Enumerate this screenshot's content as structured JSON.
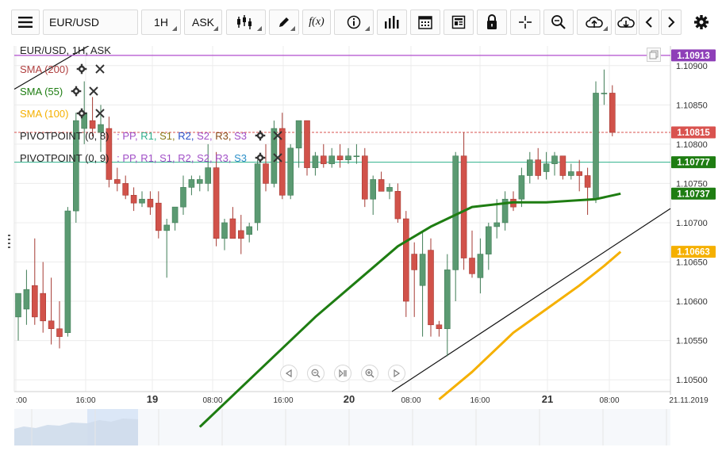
{
  "toolbar": {
    "symbol": "EUR/USD",
    "timeframe": "1H",
    "price_side": "ASK",
    "fx_label": "f(x)"
  },
  "legend": {
    "title": "EUR/USD, 1H, ASK",
    "sma200": "SMA (200)",
    "sma55": "SMA (55)",
    "sma100": "SMA (100)",
    "pivot1_prefix": "PIVOTPOINT (0, 8)",
    "pivot2_prefix": "PIVOTPOINT (0, 9)",
    "pivot_colon": ":",
    "pp": "PP,",
    "r1": "R1,",
    "s1": "S1,",
    "r2": "R2,",
    "s2": "S2,",
    "r3": "R3,",
    "s3": "S3"
  },
  "colors": {
    "bull": "#5b9a72",
    "bear": "#d1524a",
    "sma200": "#b04040",
    "sma55": "#1e7d12",
    "sma100": "#f5b000",
    "purple_line": "#b24fcf",
    "red_price": "#d9534f",
    "teal_line": "#2fb08c",
    "green_label": "#1e7d12",
    "yellow_label": "#f5b000"
  },
  "chart_data": {
    "type": "candlestick",
    "symbol": "EUR/USD",
    "interval": "1H",
    "ylim": [
      1.10485,
      1.10925
    ],
    "y_ticks": [
      "1.10900",
      "1.10850",
      "1.10800",
      "1.10750",
      "1.10700",
      "1.10650",
      "1.10600",
      "1.10550",
      "1.10500"
    ],
    "x_labels": [
      ":00",
      "16:00",
      "19",
      "08:00",
      "16:00",
      "20",
      "08:00",
      "16:00",
      "21",
      "08:00",
      "21.11.2019"
    ],
    "price_labels": [
      {
        "text": "1.10913",
        "value": 1.10913,
        "color": "#8e3fb8"
      },
      {
        "text": "1.10815",
        "value": 1.10815,
        "color": "#d9534f"
      },
      {
        "text": "1.10777",
        "value": 1.10777,
        "color": "#1e7d12"
      },
      {
        "text": "1.10737",
        "value": 1.10737,
        "color": "#1e7d12"
      },
      {
        "text": "1.10663",
        "value": 1.10663,
        "color": "#f5b000"
      }
    ],
    "candles": [
      {
        "o": 1.1058,
        "h": 1.1061,
        "l": 1.1055,
        "c": 1.1061
      },
      {
        "o": 1.1059,
        "h": 1.1064,
        "l": 1.1057,
        "c": 1.10615
      },
      {
        "o": 1.1062,
        "h": 1.1068,
        "l": 1.1057,
        "c": 1.1058
      },
      {
        "o": 1.1061,
        "h": 1.1065,
        "l": 1.1056,
        "c": 1.10575
      },
      {
        "o": 1.10575,
        "h": 1.1063,
        "l": 1.10545,
        "c": 1.10565
      },
      {
        "o": 1.10565,
        "h": 1.106,
        "l": 1.1054,
        "c": 1.10555
      },
      {
        "o": 1.1056,
        "h": 1.1072,
        "l": 1.10555,
        "c": 1.10715
      },
      {
        "o": 1.10715,
        "h": 1.1084,
        "l": 1.107,
        "c": 1.1083
      },
      {
        "o": 1.1082,
        "h": 1.1088,
        "l": 1.108,
        "c": 1.1084
      },
      {
        "o": 1.1083,
        "h": 1.1086,
        "l": 1.1081,
        "c": 1.1082
      },
      {
        "o": 1.10815,
        "h": 1.1085,
        "l": 1.1079,
        "c": 1.10825
      },
      {
        "o": 1.1082,
        "h": 1.10835,
        "l": 1.10745,
        "c": 1.10755
      },
      {
        "o": 1.10755,
        "h": 1.1077,
        "l": 1.1074,
        "c": 1.1075
      },
      {
        "o": 1.1075,
        "h": 1.1076,
        "l": 1.1073,
        "c": 1.10735
      },
      {
        "o": 1.10735,
        "h": 1.10745,
        "l": 1.10715,
        "c": 1.10725
      },
      {
        "o": 1.10725,
        "h": 1.1074,
        "l": 1.1072,
        "c": 1.1073
      },
      {
        "o": 1.1073,
        "h": 1.1074,
        "l": 1.1071,
        "c": 1.1072
      },
      {
        "o": 1.10725,
        "h": 1.1074,
        "l": 1.1068,
        "c": 1.1069
      },
      {
        "o": 1.1069,
        "h": 1.10705,
        "l": 1.1063,
        "c": 1.10697
      },
      {
        "o": 1.107,
        "h": 1.1072,
        "l": 1.1069,
        "c": 1.1072
      },
      {
        "o": 1.1072,
        "h": 1.1076,
        "l": 1.1071,
        "c": 1.10745
      },
      {
        "o": 1.10745,
        "h": 1.1076,
        "l": 1.10735,
        "c": 1.10755
      },
      {
        "o": 1.1075,
        "h": 1.1076,
        "l": 1.1074,
        "c": 1.10755
      },
      {
        "o": 1.1075,
        "h": 1.108,
        "l": 1.1074,
        "c": 1.1077
      },
      {
        "o": 1.1077,
        "h": 1.1079,
        "l": 1.1067,
        "c": 1.1068
      },
      {
        "o": 1.1068,
        "h": 1.10705,
        "l": 1.10665,
        "c": 1.107
      },
      {
        "o": 1.10705,
        "h": 1.1072,
        "l": 1.1068,
        "c": 1.1068
      },
      {
        "o": 1.1069,
        "h": 1.1071,
        "l": 1.1066,
        "c": 1.1068
      },
      {
        "o": 1.10685,
        "h": 1.107,
        "l": 1.10675,
        "c": 1.10695
      },
      {
        "o": 1.107,
        "h": 1.1078,
        "l": 1.1069,
        "c": 1.10775
      },
      {
        "o": 1.10775,
        "h": 1.108,
        "l": 1.1074,
        "c": 1.1075
      },
      {
        "o": 1.1075,
        "h": 1.1083,
        "l": 1.10745,
        "c": 1.1082
      },
      {
        "o": 1.1082,
        "h": 1.1084,
        "l": 1.1073,
        "c": 1.10735
      },
      {
        "o": 1.10735,
        "h": 1.108,
        "l": 1.1073,
        "c": 1.10795
      },
      {
        "o": 1.10795,
        "h": 1.1083,
        "l": 1.1077,
        "c": 1.1083
      },
      {
        "o": 1.1083,
        "h": 1.1083,
        "l": 1.1076,
        "c": 1.1077
      },
      {
        "o": 1.1077,
        "h": 1.1079,
        "l": 1.1076,
        "c": 1.10785
      },
      {
        "o": 1.10785,
        "h": 1.108,
        "l": 1.1077,
        "c": 1.10775
      },
      {
        "o": 1.10775,
        "h": 1.10795,
        "l": 1.1077,
        "c": 1.10785
      },
      {
        "o": 1.10785,
        "h": 1.108,
        "l": 1.1077,
        "c": 1.1078
      },
      {
        "o": 1.1078,
        "h": 1.10795,
        "l": 1.10775,
        "c": 1.10785
      },
      {
        "o": 1.10785,
        "h": 1.108,
        "l": 1.10775,
        "c": 1.10785
      },
      {
        "o": 1.10785,
        "h": 1.10795,
        "l": 1.1072,
        "c": 1.1073
      },
      {
        "o": 1.1073,
        "h": 1.1076,
        "l": 1.1071,
        "c": 1.10755
      },
      {
        "o": 1.10755,
        "h": 1.10765,
        "l": 1.1074,
        "c": 1.1074
      },
      {
        "o": 1.1074,
        "h": 1.1075,
        "l": 1.1073,
        "c": 1.10745
      },
      {
        "o": 1.1074,
        "h": 1.1075,
        "l": 1.107,
        "c": 1.10705
      },
      {
        "o": 1.10705,
        "h": 1.10715,
        "l": 1.1058,
        "c": 1.106
      },
      {
        "o": 1.1066,
        "h": 1.10675,
        "l": 1.1058,
        "c": 1.1064
      },
      {
        "o": 1.1062,
        "h": 1.1069,
        "l": 1.10555,
        "c": 1.1066
      },
      {
        "o": 1.10665,
        "h": 1.1068,
        "l": 1.10555,
        "c": 1.1057
      },
      {
        "o": 1.1057,
        "h": 1.10575,
        "l": 1.10555,
        "c": 1.10565
      },
      {
        "o": 1.10565,
        "h": 1.1066,
        "l": 1.1053,
        "c": 1.1064
      },
      {
        "o": 1.1064,
        "h": 1.1079,
        "l": 1.106,
        "c": 1.10785
      },
      {
        "o": 1.10785,
        "h": 1.10815,
        "l": 1.1064,
        "c": 1.10655
      },
      {
        "o": 1.10655,
        "h": 1.1069,
        "l": 1.1063,
        "c": 1.10635
      },
      {
        "o": 1.1063,
        "h": 1.1068,
        "l": 1.1061,
        "c": 1.1066
      },
      {
        "o": 1.1066,
        "h": 1.107,
        "l": 1.1064,
        "c": 1.10695
      },
      {
        "o": 1.10695,
        "h": 1.1073,
        "l": 1.1068,
        "c": 1.107
      },
      {
        "o": 1.107,
        "h": 1.1074,
        "l": 1.1069,
        "c": 1.1073
      },
      {
        "o": 1.1073,
        "h": 1.1074,
        "l": 1.10715,
        "c": 1.1072
      },
      {
        "o": 1.1073,
        "h": 1.1077,
        "l": 1.1072,
        "c": 1.1076
      },
      {
        "o": 1.1076,
        "h": 1.1079,
        "l": 1.1075,
        "c": 1.1078
      },
      {
        "o": 1.1078,
        "h": 1.10795,
        "l": 1.10755,
        "c": 1.1076
      },
      {
        "o": 1.10765,
        "h": 1.1079,
        "l": 1.10755,
        "c": 1.10775
      },
      {
        "o": 1.10775,
        "h": 1.1079,
        "l": 1.1076,
        "c": 1.10785
      },
      {
        "o": 1.10785,
        "h": 1.10785,
        "l": 1.10755,
        "c": 1.1076
      },
      {
        "o": 1.1076,
        "h": 1.10775,
        "l": 1.10755,
        "c": 1.10765
      },
      {
        "o": 1.10765,
        "h": 1.1078,
        "l": 1.1074,
        "c": 1.1076
      },
      {
        "o": 1.1076,
        "h": 1.1077,
        "l": 1.1071,
        "c": 1.10745
      },
      {
        "o": 1.1073,
        "h": 1.1088,
        "l": 1.10725,
        "c": 1.10865
      },
      {
        "o": 1.10865,
        "h": 1.10895,
        "l": 1.1085,
        "c": 1.10865
      },
      {
        "o": 1.10865,
        "h": 1.10875,
        "l": 1.1081,
        "c": 1.10815
      }
    ],
    "sma55_points": [
      [
        22,
        1.1044
      ],
      [
        30,
        1.1052
      ],
      [
        36,
        1.1058
      ],
      [
        41,
        1.10625
      ],
      [
        46,
        1.1067
      ],
      [
        50,
        1.10695
      ],
      [
        55,
        1.1072
      ],
      [
        60,
        1.10726
      ],
      [
        64,
        1.10726
      ],
      [
        70,
        1.1073
      ],
      [
        73,
        1.10737
      ]
    ],
    "sma100_points": [
      [
        51,
        1.10475
      ],
      [
        55,
        1.1051
      ],
      [
        60,
        1.1056
      ],
      [
        64,
        1.1059
      ],
      [
        68,
        1.1062
      ],
      [
        71,
        1.10645
      ],
      [
        73,
        1.10663
      ]
    ],
    "trendline_points": [
      [
        51,
        1.1049
      ],
      [
        79,
        1.1072
      ]
    ]
  }
}
